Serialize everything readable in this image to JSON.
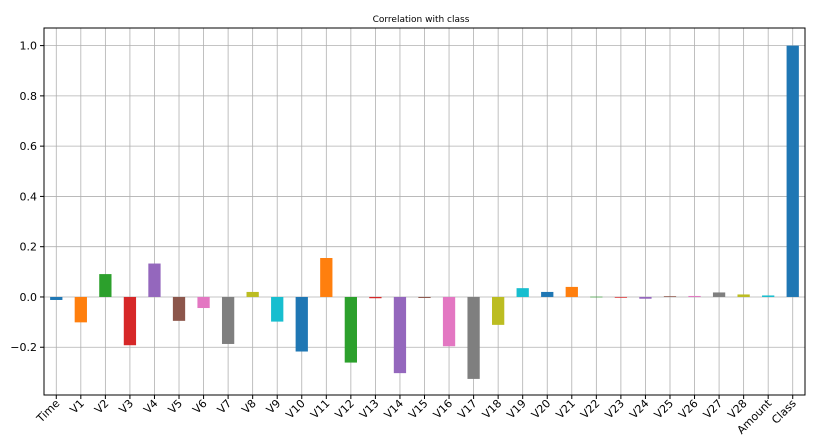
{
  "chart_data": {
    "type": "bar",
    "title": "Correlation with class",
    "xlabel": "",
    "ylabel": "",
    "ylim": [
      -0.39,
      1.07
    ],
    "yticks": [
      -0.2,
      0.0,
      0.2,
      0.4,
      0.6,
      0.8,
      1.0
    ],
    "ytick_labels": [
      "−0.2",
      "0.0",
      "0.2",
      "0.4",
      "0.6",
      "0.8",
      "1.0"
    ],
    "grid": true,
    "categories": [
      "Time",
      "V1",
      "V2",
      "V3",
      "V4",
      "V5",
      "V6",
      "V7",
      "V8",
      "V9",
      "V10",
      "V11",
      "V12",
      "V13",
      "V14",
      "V15",
      "V16",
      "V17",
      "V18",
      "V19",
      "V20",
      "V21",
      "V22",
      "V23",
      "V24",
      "V25",
      "V26",
      "V27",
      "V28",
      "Amount",
      "Class"
    ],
    "values": [
      -0.012,
      -0.101,
      0.091,
      -0.192,
      0.133,
      -0.095,
      -0.044,
      -0.187,
      0.02,
      -0.098,
      -0.217,
      0.155,
      -0.261,
      -0.005,
      -0.303,
      -0.004,
      -0.196,
      -0.326,
      -0.111,
      0.035,
      0.02,
      0.04,
      0.001,
      -0.003,
      -0.007,
      0.003,
      0.004,
      0.018,
      0.01,
      0.006,
      1.0
    ],
    "colors": [
      "#1f77b4",
      "#ff7f0e",
      "#2ca02c",
      "#d62728",
      "#9467bd",
      "#8c564b",
      "#e377c2",
      "#7f7f7f",
      "#bcbd22",
      "#17becf"
    ]
  }
}
